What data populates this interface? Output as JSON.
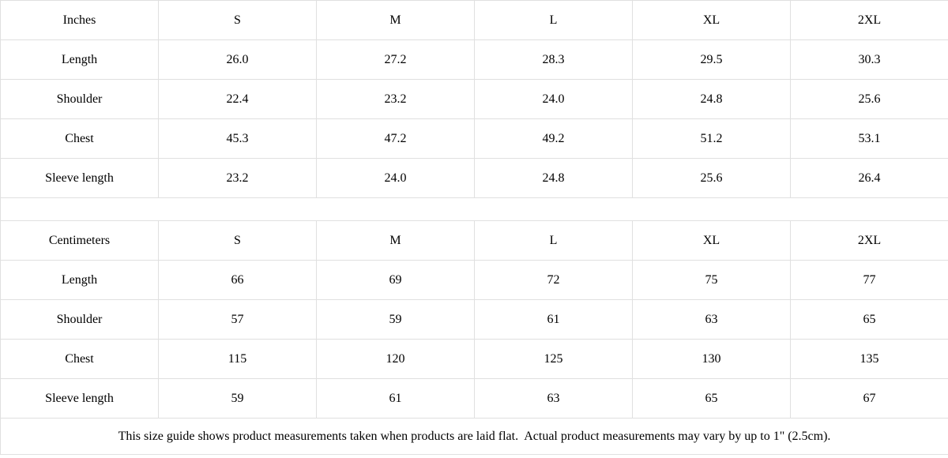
{
  "tables": [
    {
      "unit": "Inches",
      "sizes": [
        "S",
        "M",
        "L",
        "XL",
        "2XL"
      ],
      "rows": [
        {
          "label": "Length",
          "values": [
            "26.0",
            "27.2",
            "28.3",
            "29.5",
            "30.3"
          ]
        },
        {
          "label": "Shoulder",
          "values": [
            "22.4",
            "23.2",
            "24.0",
            "24.8",
            "25.6"
          ]
        },
        {
          "label": "Chest",
          "values": [
            "45.3",
            "47.2",
            "49.2",
            "51.2",
            "53.1"
          ]
        },
        {
          "label": "Sleeve length",
          "values": [
            "23.2",
            "24.0",
            "24.8",
            "25.6",
            "26.4"
          ]
        }
      ]
    },
    {
      "unit": "Centimeters",
      "sizes": [
        "S",
        "M",
        "L",
        "XL",
        "2XL"
      ],
      "rows": [
        {
          "label": "Length",
          "values": [
            "66",
            "69",
            "72",
            "75",
            "77"
          ]
        },
        {
          "label": "Shoulder",
          "values": [
            "57",
            "59",
            "61",
            "63",
            "65"
          ]
        },
        {
          "label": "Chest",
          "values": [
            "115",
            "120",
            "125",
            "130",
            "135"
          ]
        },
        {
          "label": "Sleeve length",
          "values": [
            "59",
            "61",
            "63",
            "65",
            "67"
          ]
        }
      ]
    }
  ],
  "footer_note": "This size guide shows product measurements taken when products are laid flat.  Actual product measurements may vary by up to 1\" (2.5cm).",
  "colors": {
    "header_bg": "#f1f1f1",
    "border": "#e0e0e0",
    "text": "#000000",
    "cell_bg": "#ffffff"
  }
}
